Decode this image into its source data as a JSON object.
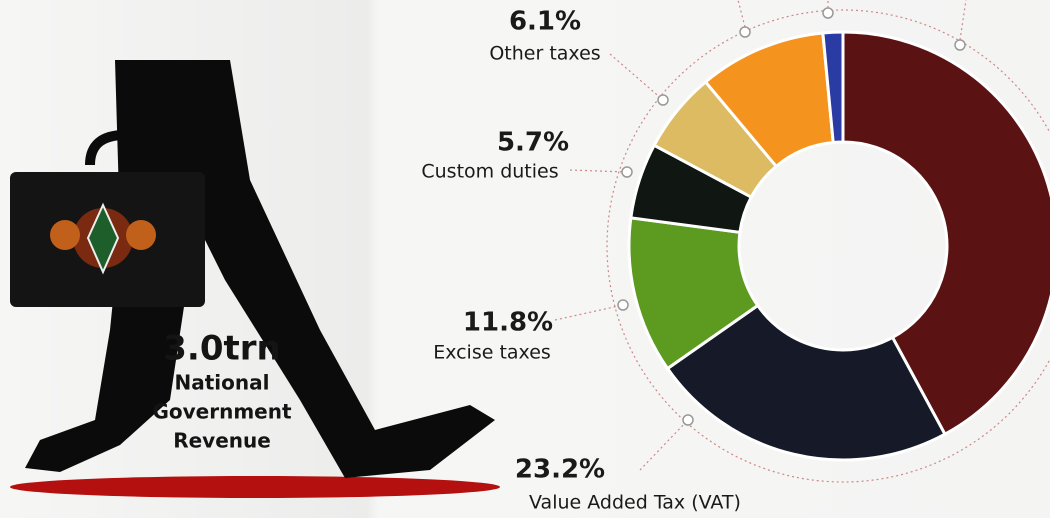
{
  "chart_data": {
    "type": "donut",
    "headline": "3.0trn",
    "caption_lines": [
      "National",
      "Government",
      "Revenue"
    ],
    "categories": [
      null,
      "Value Added Tax (VAT)",
      "Excise taxes",
      "Custom duties",
      "Other taxes",
      null,
      null
    ],
    "values": [
      42.1,
      23.2,
      11.8,
      5.7,
      6.1,
      9.6,
      1.5
    ],
    "value_labels": [
      null,
      "23.2%",
      "11.8%",
      "5.7%",
      "6.1%",
      null,
      null
    ],
    "colors": [
      "#5b1212",
      "#161a28",
      "#5c9b1f",
      "#101611",
      "#dcbb63",
      "#f5931f",
      "#2b3ba4"
    ]
  }
}
